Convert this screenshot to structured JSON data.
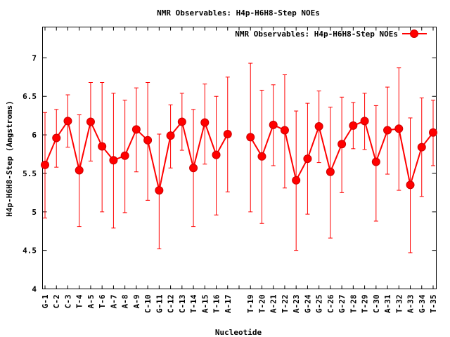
{
  "chart_data": {
    "type": "line",
    "title": "NMR Observables: H4p-H6H8-Step NOEs",
    "xlabel": "Nucleotide",
    "ylabel": "H4p-H6H8-Step (Angstroms)",
    "ylim": [
      4,
      7.4
    ],
    "yticks": [
      "4",
      "4.5",
      "5",
      "5.5",
      "6",
      "6.5",
      "7"
    ],
    "grid": false,
    "legend_position": "top-right",
    "colors": {
      "series": "#ff0000",
      "markerStroke": "#cc0000",
      "axis": "#000000"
    },
    "categories": [
      "G-1",
      "C-2",
      "C-3",
      "T-4",
      "A-5",
      "T-6",
      "A-7",
      "A-8",
      "A-9",
      "C-10",
      "G-11",
      "C-12",
      "C-13",
      "T-14",
      "A-15",
      "T-16",
      "A-17",
      "",
      "T-19",
      "T-20",
      "A-21",
      "T-22",
      "A-23",
      "G-24",
      "G-25",
      "C-26",
      "G-27",
      "T-28",
      "T-29",
      "C-30",
      "A-31",
      "T-32",
      "A-33",
      "G-34",
      "T-35"
    ],
    "series": [
      {
        "name": "NMR Observables: H4p-H6H8-Step NOEs",
        "values": [
          5.61,
          5.96,
          6.18,
          5.54,
          6.17,
          5.85,
          5.67,
          5.73,
          6.07,
          5.93,
          5.28,
          5.99,
          6.17,
          5.57,
          6.16,
          5.74,
          6.01,
          null,
          5.97,
          5.72,
          6.13,
          6.06,
          5.41,
          5.69,
          6.11,
          5.52,
          5.88,
          6.12,
          6.18,
          5.65,
          6.06,
          6.08,
          5.35,
          5.84,
          6.03
        ],
        "error_low": [
          4.92,
          5.58,
          5.84,
          4.81,
          5.66,
          5.0,
          4.79,
          4.99,
          5.52,
          5.15,
          4.52,
          5.57,
          5.8,
          4.81,
          5.62,
          4.96,
          5.26,
          null,
          5.0,
          4.85,
          5.6,
          5.31,
          4.5,
          4.97,
          5.64,
          4.66,
          5.25,
          5.82,
          5.81,
          4.88,
          5.49,
          5.28,
          4.47,
          5.2,
          5.6
        ],
        "error_high": [
          6.29,
          6.33,
          6.52,
          6.26,
          6.68,
          6.68,
          6.54,
          6.45,
          6.61,
          6.68,
          6.01,
          6.39,
          6.54,
          6.33,
          6.66,
          6.5,
          6.75,
          null,
          6.93,
          6.58,
          6.65,
          6.78,
          6.31,
          6.41,
          6.57,
          6.36,
          6.49,
          6.42,
          6.54,
          6.38,
          6.62,
          6.87,
          6.22,
          6.48,
          6.45
        ]
      }
    ]
  }
}
